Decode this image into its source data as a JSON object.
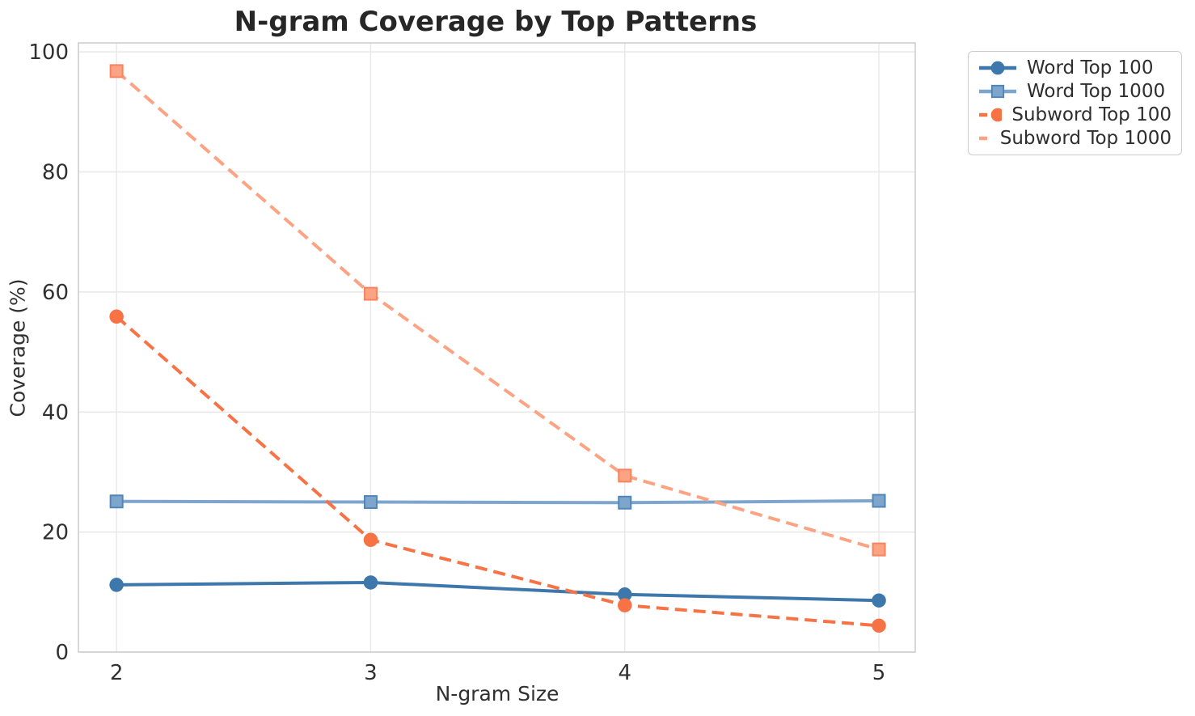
{
  "chart_data": {
    "type": "line",
    "title": "N-gram Coverage by Top Patterns",
    "xlabel": "N-gram Size",
    "ylabel": "Coverage (%)",
    "x": [
      2,
      3,
      4,
      5
    ],
    "xticks": [
      2,
      3,
      4,
      5
    ],
    "yticks": [
      0,
      20,
      40,
      60,
      80,
      100
    ],
    "xlim": [
      1.85,
      5.143
    ],
    "ylim": [
      0,
      101.5
    ],
    "grid": true,
    "legend_position": "outside-upper-right",
    "series": [
      {
        "name": "Word Top 100",
        "values": [
          11.2,
          11.6,
          9.6,
          8.6
        ],
        "color": "#3d77ab",
        "edge_color": "#3d77ab",
        "line_style": "solid",
        "marker": "circle"
      },
      {
        "name": "Word Top 1000",
        "values": [
          25.1,
          25.0,
          24.9,
          25.2
        ],
        "color": "#7ea6cc",
        "edge_color": "#5386b8",
        "line_style": "solid",
        "marker": "square"
      },
      {
        "name": "Subword Top 100",
        "values": [
          55.9,
          18.7,
          7.8,
          4.4
        ],
        "color": "#f77244",
        "edge_color": "#f77244",
        "line_style": "dashed",
        "marker": "circle"
      },
      {
        "name": "Subword Top 1000",
        "values": [
          96.8,
          59.7,
          29.4,
          17.1
        ],
        "color": "#fca383",
        "edge_color": "#f8835e",
        "line_style": "dashed",
        "marker": "square"
      }
    ],
    "colors": {
      "grid": "#e8e8e8",
      "spine": "#cccccc",
      "title": "#262626",
      "tick_labels": "#303030",
      "legend_border": "#cccccc",
      "background": "#ffffff"
    }
  }
}
